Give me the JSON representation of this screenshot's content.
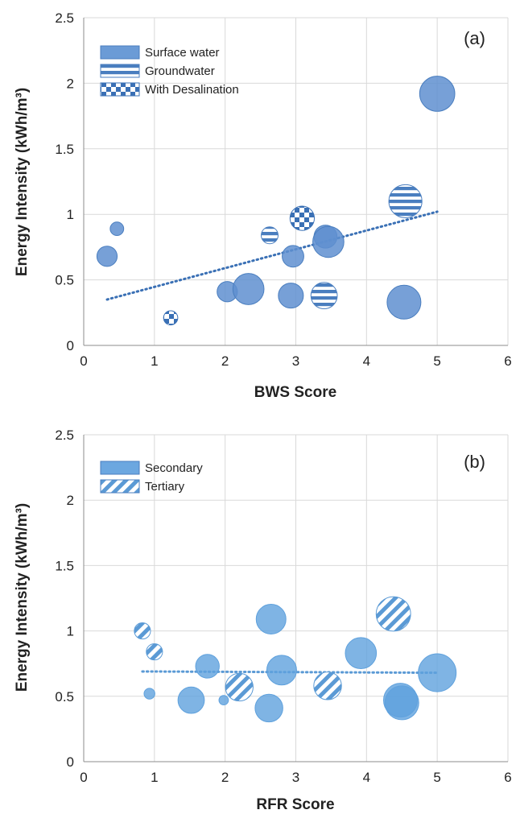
{
  "chart_data": [
    {
      "type": "scatter",
      "subtype": "bubble",
      "panel_label": "(a)",
      "xlabel": "BWS Score",
      "ylabel": "Energy Intensity (kWh/m³)",
      "xlim": [
        0,
        6
      ],
      "ylim": [
        0,
        2.5
      ],
      "x_ticks": [
        "0",
        "1",
        "2",
        "3",
        "4",
        "5",
        "6"
      ],
      "y_ticks": [
        "0",
        "0.5",
        "1",
        "1.5",
        "2",
        "2.5"
      ],
      "grid": true,
      "legend_position": "top-left",
      "legend": [
        {
          "label": "Surface water",
          "pattern": "solid"
        },
        {
          "label": "Groundwater",
          "pattern": "horizontal-stripes"
        },
        {
          "label": "With Desalination",
          "pattern": "checker"
        }
      ],
      "trendline": {
        "style": "dotted",
        "x": [
          0.33,
          5.0
        ],
        "y": [
          0.35,
          1.02
        ]
      },
      "series": [
        {
          "name": "Surface water",
          "pattern": "solid",
          "points": [
            {
              "x": 0.33,
              "y": 0.68,
              "size": 3.0
            },
            {
              "x": 0.47,
              "y": 0.89,
              "size": 2.0
            },
            {
              "x": 2.03,
              "y": 0.41,
              "size": 3.0
            },
            {
              "x": 2.33,
              "y": 0.43,
              "size": 4.6
            },
            {
              "x": 2.93,
              "y": 0.38,
              "size": 3.7
            },
            {
              "x": 2.96,
              "y": 0.68,
              "size": 3.2
            },
            {
              "x": 3.42,
              "y": 0.83,
              "size": 3.4
            },
            {
              "x": 3.46,
              "y": 0.79,
              "size": 4.6
            },
            {
              "x": 4.53,
              "y": 0.33,
              "size": 5.0
            },
            {
              "x": 5.0,
              "y": 1.92,
              "size": 5.2
            }
          ]
        },
        {
          "name": "Groundwater",
          "pattern": "horizontal-stripes",
          "points": [
            {
              "x": 2.63,
              "y": 0.84,
              "size": 2.5
            },
            {
              "x": 3.4,
              "y": 0.38,
              "size": 3.9
            },
            {
              "x": 4.55,
              "y": 1.1,
              "size": 4.9
            }
          ]
        },
        {
          "name": "With Desalination",
          "pattern": "checker",
          "points": [
            {
              "x": 1.23,
              "y": 0.21,
              "size": 2.1
            },
            {
              "x": 3.09,
              "y": 0.97,
              "size": 3.6
            }
          ]
        }
      ]
    },
    {
      "type": "scatter",
      "subtype": "bubble",
      "panel_label": "(b)",
      "xlabel": "RFR Score",
      "ylabel": "Energy Intensity (kWh/m³)",
      "xlim": [
        0,
        6
      ],
      "ylim": [
        0,
        2.5
      ],
      "x_ticks": [
        "0",
        "1",
        "2",
        "3",
        "4",
        "5",
        "6"
      ],
      "y_ticks": [
        "0",
        "0.5",
        "1",
        "1.5",
        "2",
        "2.5"
      ],
      "grid": true,
      "legend_position": "top-left",
      "legend": [
        {
          "label": "Secondary",
          "pattern": "solid"
        },
        {
          "label": "Tertiary",
          "pattern": "diagonal-stripes"
        }
      ],
      "trendline": {
        "style": "dotted",
        "x": [
          0.83,
          5.0
        ],
        "y": [
          0.69,
          0.68
        ]
      },
      "series": [
        {
          "name": "Secondary",
          "pattern": "solid",
          "points": [
            {
              "x": 0.93,
              "y": 0.52,
              "size": 1.6
            },
            {
              "x": 1.52,
              "y": 0.47,
              "size": 3.9
            },
            {
              "x": 1.75,
              "y": 0.73,
              "size": 3.5
            },
            {
              "x": 1.98,
              "y": 0.47,
              "size": 1.4
            },
            {
              "x": 2.62,
              "y": 0.41,
              "size": 4.1
            },
            {
              "x": 2.65,
              "y": 1.09,
              "size": 4.4
            },
            {
              "x": 2.8,
              "y": 0.7,
              "size": 4.4
            },
            {
              "x": 3.92,
              "y": 0.83,
              "size": 4.6
            },
            {
              "x": 4.48,
              "y": 0.47,
              "size": 5.0
            },
            {
              "x": 4.5,
              "y": 0.45,
              "size": 5.0
            },
            {
              "x": 5.0,
              "y": 0.68,
              "size": 5.6
            }
          ]
        },
        {
          "name": "Tertiary",
          "pattern": "diagonal-stripes",
          "points": [
            {
              "x": 0.83,
              "y": 1.0,
              "size": 2.4
            },
            {
              "x": 1.0,
              "y": 0.84,
              "size": 2.4
            },
            {
              "x": 2.2,
              "y": 0.57,
              "size": 4.1
            },
            {
              "x": 3.45,
              "y": 0.58,
              "size": 4.1
            },
            {
              "x": 4.38,
              "y": 1.13,
              "size": 5.1
            }
          ]
        }
      ]
    }
  ]
}
